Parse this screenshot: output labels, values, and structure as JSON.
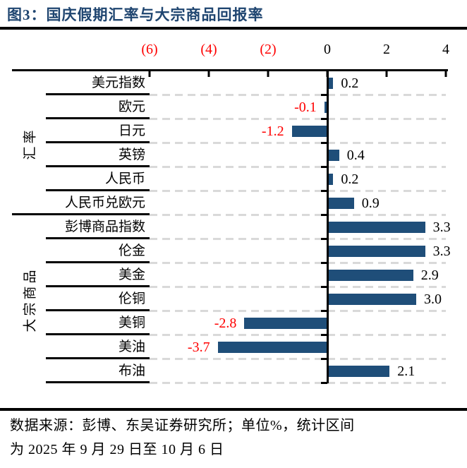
{
  "title": "图3：国庆假期汇率与大宗商品回报率",
  "footer": {
    "line1": "数据来源：彭博、东吴证券研究所；单位%，统计区间",
    "line2": "为 2025 年 9 月 29 日至 10 月 6 日"
  },
  "colors": {
    "bar": "#1f4e79",
    "title": "#1f4570",
    "negative": "#ff0000",
    "gridline": "#d9d9d9",
    "axis": "#000000"
  },
  "chart_data": {
    "type": "bar",
    "orientation": "horizontal",
    "title": "图3：国庆假期汇率与大宗商品回报率",
    "unit": "%",
    "xlim": [
      -6,
      4
    ],
    "grid": "dashed-row-separators",
    "x_ticks": [
      {
        "value": -6,
        "label": "(6)",
        "negative": true
      },
      {
        "value": -4,
        "label": "(4)",
        "negative": true
      },
      {
        "value": -2,
        "label": "(2)",
        "negative": true
      },
      {
        "value": 0,
        "label": "0",
        "negative": false
      },
      {
        "value": 2,
        "label": "2",
        "negative": false
      },
      {
        "value": 4,
        "label": "4",
        "negative": false
      }
    ],
    "groups": [
      {
        "label": "汇率",
        "rows": [
          {
            "label": "美元指数",
            "value": 0.2,
            "display": "0.2"
          },
          {
            "label": "欧元",
            "value": -0.1,
            "display": "-0.1"
          },
          {
            "label": "日元",
            "value": -1.2,
            "display": "-1.2"
          },
          {
            "label": "英镑",
            "value": 0.4,
            "display": "0.4"
          },
          {
            "label": "人民币",
            "value": 0.2,
            "display": "0.2"
          },
          {
            "label": "人民币兑欧元",
            "value": 0.9,
            "display": "0.9"
          }
        ]
      },
      {
        "label": "大宗商品",
        "rows": [
          {
            "label": "彭博商品指数",
            "value": 3.3,
            "display": "3.3"
          },
          {
            "label": "伦金",
            "value": 3.3,
            "display": "3.3"
          },
          {
            "label": "美金",
            "value": 2.9,
            "display": "2.9"
          },
          {
            "label": "伦铜",
            "value": 3.0,
            "display": "3.0"
          },
          {
            "label": "美铜",
            "value": -2.8,
            "display": "-2.8"
          },
          {
            "label": "美油",
            "value": -3.7,
            "display": "-3.7"
          },
          {
            "label": "布油",
            "value": 2.1,
            "display": "2.1"
          }
        ]
      }
    ]
  }
}
